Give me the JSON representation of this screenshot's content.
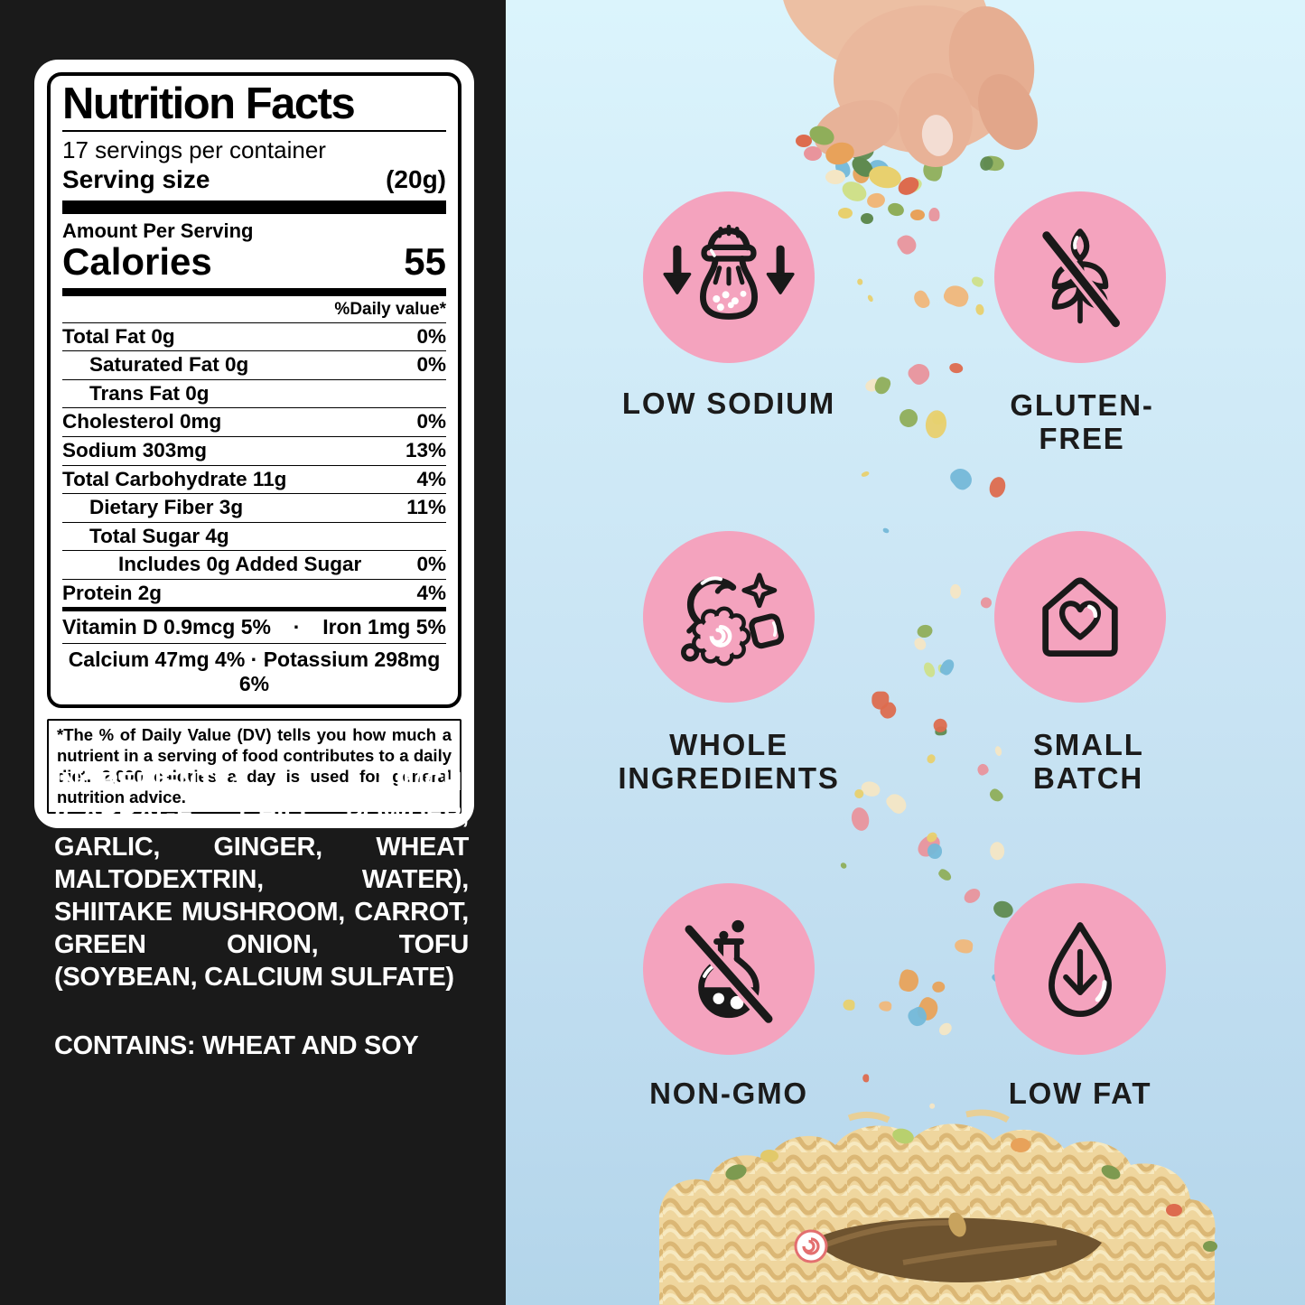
{
  "nutrition": {
    "title": "Nutrition Facts",
    "servings": "17 servings per container",
    "serving_size_label": "Serving size",
    "serving_size_value": "(20g)",
    "amount_per_serving": "Amount Per Serving",
    "calories_label": "Calories",
    "calories_value": "55",
    "daily_value_header": "%Daily value*",
    "rows": [
      {
        "label": "Total Fat 0g",
        "value": "0%"
      },
      {
        "label": "Saturated Fat 0g",
        "value": "0%"
      },
      {
        "label": "Trans Fat 0g",
        "value": ""
      },
      {
        "label": "Cholesterol 0mg",
        "value": "0%"
      },
      {
        "label": "Sodium 303mg",
        "value": "13%"
      },
      {
        "label": "Total Carbohydrate 11g",
        "value": "4%"
      },
      {
        "label": "Dietary Fiber 3g",
        "value": "11%"
      },
      {
        "label": "Total Sugar 4g",
        "value": ""
      },
      {
        "label": "Includes 0g Added Sugar",
        "value": "0%"
      },
      {
        "label": "Protein 2g",
        "value": "4%"
      }
    ],
    "vitamin_d": "Vitamin D 0.9mcg 5%",
    "separator": "·",
    "iron": "Iron 1mg 5%",
    "minerals": "Calcium 47mg 4% · Potassium 298mg 6%",
    "footnote": "*The % of Daily Value (DV) tells you how much a nutrient in a serving of food contributes to a daily diet. 2,000 calories a day is used for general nutrition advice."
  },
  "ingredients": {
    "text": "INGREDIENTS: KIMCHI (CABBAGE, CHILI POWDER, GARLIC, GINGER, WHEAT MALTODEXTRIN, WATER), SHIITAKE MUSHROOM, CARROT, GREEN ONION, TOFU (SOYBEAN, CALCIUM SULFATE)",
    "contains": "CONTAINS: WHEAT AND SOY"
  },
  "badges": [
    {
      "icon": "salt-shaker-low-icon",
      "line1": "LOW SODIUM",
      "line2": ""
    },
    {
      "icon": "wheat-slash-icon",
      "line1": "GLUTEN-",
      "line2": "FREE"
    },
    {
      "icon": "whole-foods-icon",
      "line1": "WHOLE",
      "line2": "INGREDIENTS"
    },
    {
      "icon": "house-heart-icon",
      "line1": "SMALL",
      "line2": "BATCH"
    },
    {
      "icon": "flask-slash-icon",
      "line1": "NON-GMO",
      "line2": ""
    },
    {
      "icon": "droplet-down-arrow-icon",
      "line1": "LOW FAT",
      "line2": ""
    }
  ],
  "colors": {
    "badge_pink": "#F4A3BE",
    "sky_top": "#DBF4FC",
    "sky_bottom": "#B3D5EA",
    "panel_black": "#1A1A1A",
    "label_text": "#000000",
    "noodle": "#EFD69E"
  },
  "photo": {
    "confetti_palette": [
      "#E8A25A",
      "#8FAE5A",
      "#E8D06E",
      "#F4E6C4",
      "#DD6B4E",
      "#5F8A50",
      "#F0B77A",
      "#CFE08A",
      "#E9949C",
      "#74B8D8"
    ]
  }
}
